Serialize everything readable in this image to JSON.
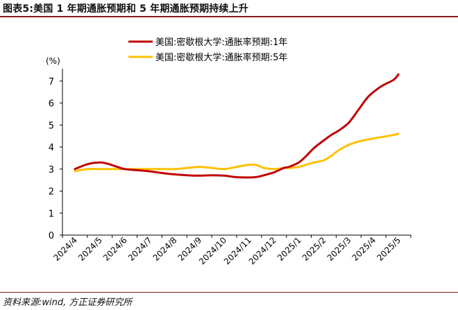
{
  "header": {
    "title": "图表5:美国 1 年期通胀预期和 5 年期通胀预期持续上升"
  },
  "footer": {
    "source": "资料来源:wind, 方正证券研究所"
  },
  "chart_data": {
    "type": "line",
    "ylabel": "(%)",
    "ylim": [
      0,
      7.5
    ],
    "yticks": [
      0,
      1,
      2,
      3,
      4,
      5,
      6,
      7
    ],
    "grid": false,
    "legend_position": "top-center",
    "categories": [
      "2024/4",
      "2024/5",
      "2024/6",
      "2024/7",
      "2024/8",
      "2024/9",
      "2024/10",
      "2024/11",
      "2024/12",
      "2025/1",
      "2025/2",
      "2025/3",
      "2025/4",
      "2025/5"
    ],
    "x": [
      0,
      0.5,
      1,
      1.3,
      1.7,
      2,
      2.5,
      3,
      3.5,
      4,
      4.5,
      5,
      5.5,
      6,
      6.5,
      7,
      7.3,
      7.6,
      8,
      8.4,
      8.6,
      9,
      9.3,
      9.6,
      10,
      10.3,
      10.6,
      11,
      11.4,
      11.8,
      12.3,
      12.8,
      13
    ],
    "series": [
      {
        "name": "美国:密歇根大学:通胀率预期:1年",
        "color": "#c00000",
        "y": [
          3.0,
          3.22,
          3.3,
          3.25,
          3.1,
          3.0,
          2.95,
          2.9,
          2.82,
          2.76,
          2.72,
          2.7,
          2.72,
          2.7,
          2.63,
          2.62,
          2.64,
          2.72,
          2.85,
          3.05,
          3.1,
          3.3,
          3.6,
          3.95,
          4.3,
          4.55,
          4.75,
          5.1,
          5.7,
          6.3,
          6.75,
          7.05,
          7.3
        ]
      },
      {
        "name": "美国:密歇根大学:通胀率预期:5年",
        "color": "#ffc000",
        "y": [
          2.9,
          3.0,
          3.0,
          3.0,
          3.0,
          3.0,
          3.0,
          3.0,
          3.0,
          3.0,
          3.05,
          3.1,
          3.05,
          3.0,
          3.1,
          3.2,
          3.18,
          3.05,
          3.0,
          3.05,
          3.05,
          3.1,
          3.2,
          3.3,
          3.4,
          3.6,
          3.85,
          4.1,
          4.25,
          4.35,
          4.45,
          4.55,
          4.6
        ]
      }
    ]
  }
}
